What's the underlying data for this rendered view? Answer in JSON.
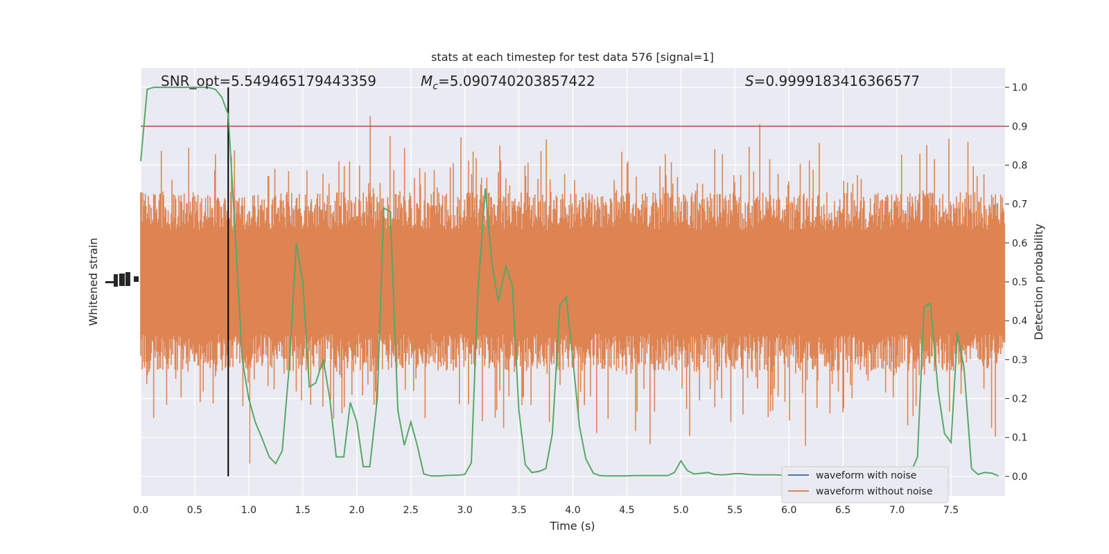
{
  "chart_data": {
    "type": "line",
    "title": "stats at each timestep for test data 576 [signal=1]",
    "xlabel": "Time (s)",
    "ylabel_left": "Whitened strain",
    "ylabel_right": "Detection probability",
    "xlim": [
      0,
      8
    ],
    "ylim_right": [
      -0.05,
      1.05
    ],
    "x_ticks": [
      "0.0",
      "0.5",
      "1.0",
      "1.5",
      "2.0",
      "2.5",
      "3.0",
      "3.5",
      "4.0",
      "4.5",
      "5.0",
      "5.5",
      "6.0",
      "6.5",
      "7.0",
      "7.5"
    ],
    "y_ticks_right": [
      "0.0",
      "0.1",
      "0.2",
      "0.3",
      "0.4",
      "0.5",
      "0.6",
      "0.7",
      "0.8",
      "0.9",
      "1.0"
    ],
    "annotations": {
      "snr": "SNR_opt=5.549465179443359",
      "mc_symbol": "M",
      "mc_sub": "c",
      "mc_value": "=5.090740203857422",
      "s_symbol": "S",
      "s_value": "=0.9999183416366577"
    },
    "threshold": 0.9,
    "vertical_line_x": 0.81,
    "grid": true,
    "legend_position": "lower-right",
    "colors": {
      "background": "#eaeaf2",
      "grid": "#ffffff",
      "noise": "#dd8452",
      "probability": "#55a868",
      "threshold": "#c44e52",
      "with_noise": "#4c72b0",
      "vline": "#000000"
    },
    "series": [
      {
        "name": "waveform with noise",
        "values": []
      },
      {
        "name": "waveform without noise",
        "values": []
      },
      {
        "x": [
          0.0,
          0.06,
          0.12,
          0.19,
          0.25,
          0.31,
          0.38,
          0.44,
          0.5,
          0.56,
          0.62,
          0.69,
          0.75,
          0.81,
          0.88,
          0.94,
          1.0,
          1.06,
          1.12,
          1.19,
          1.25,
          1.31,
          1.38,
          1.44,
          1.5,
          1.56,
          1.62,
          1.69,
          1.75,
          1.81,
          1.88,
          1.94,
          2.0,
          2.06,
          2.12,
          2.19,
          2.25,
          2.31,
          2.38,
          2.44,
          2.5,
          2.56,
          2.62,
          2.69,
          2.75,
          2.81,
          2.88,
          2.94,
          3.0,
          3.06,
          3.12,
          3.19,
          3.25,
          3.31,
          3.38,
          3.44,
          3.5,
          3.56,
          3.62,
          3.69,
          3.75,
          3.81,
          3.88,
          3.94,
          4.0,
          4.06,
          4.12,
          4.19,
          4.25,
          4.31,
          4.38,
          4.44,
          4.5,
          4.56,
          4.62,
          4.69,
          4.75,
          4.81,
          4.88,
          4.94,
          5.0,
          5.06,
          5.12,
          5.19,
          5.25,
          5.31,
          5.38,
          5.44,
          5.5,
          5.56,
          5.62,
          5.69,
          5.75,
          5.81,
          5.88,
          5.94,
          6.0,
          6.06,
          6.12,
          6.19,
          6.25,
          6.31,
          6.38,
          6.44,
          6.5,
          6.56,
          6.62,
          6.69,
          6.75,
          6.81,
          6.88,
          6.94,
          7.0,
          7.06,
          7.12,
          7.19,
          7.25,
          7.31,
          7.38,
          7.44,
          7.5,
          7.56,
          7.62,
          7.69,
          7.75,
          7.81,
          7.88,
          7.94
        ],
        "values": [
          0.81,
          0.995,
          1.0,
          1.0,
          1.0,
          1.0,
          1.0,
          1.0,
          1.0,
          1.0,
          1.0,
          0.995,
          0.975,
          0.93,
          0.6,
          0.3,
          0.2,
          0.14,
          0.1,
          0.05,
          0.033,
          0.066,
          0.3,
          0.6,
          0.5,
          0.23,
          0.24,
          0.3,
          0.2,
          0.05,
          0.05,
          0.19,
          0.14,
          0.025,
          0.025,
          0.2,
          0.69,
          0.68,
          0.17,
          0.08,
          0.14,
          0.08,
          0.006,
          0.001,
          0.001,
          0.002,
          0.003,
          0.003,
          0.005,
          0.035,
          0.47,
          0.74,
          0.55,
          0.45,
          0.54,
          0.49,
          0.17,
          0.03,
          0.01,
          0.013,
          0.02,
          0.11,
          0.44,
          0.46,
          0.3,
          0.13,
          0.045,
          0.008,
          0.002,
          0.001,
          0.001,
          0.001,
          0.001,
          0.002,
          0.002,
          0.002,
          0.002,
          0.002,
          0.002,
          0.01,
          0.04,
          0.015,
          0.006,
          0.008,
          0.01,
          0.005,
          0.004,
          0.005,
          0.007,
          0.007,
          0.005,
          0.004,
          0.004,
          0.004,
          0.004,
          0.003,
          0.003,
          0.003,
          0.003,
          0.003,
          0.003,
          0.003,
          0.003,
          0.003,
          0.003,
          0.003,
          0.003,
          0.003,
          0.003,
          0.003,
          0.003,
          0.003,
          0.003,
          0.003,
          0.005,
          0.05,
          0.435,
          0.445,
          0.22,
          0.11,
          0.087,
          0.37,
          0.28,
          0.02,
          0.005,
          0.01,
          0.008,
          0.001
        ]
      }
    ]
  },
  "legend": [
    {
      "label": "waveform with noise",
      "color": "#4c72b0"
    },
    {
      "label": "waveform without noise",
      "color": "#dd8452"
    }
  ]
}
